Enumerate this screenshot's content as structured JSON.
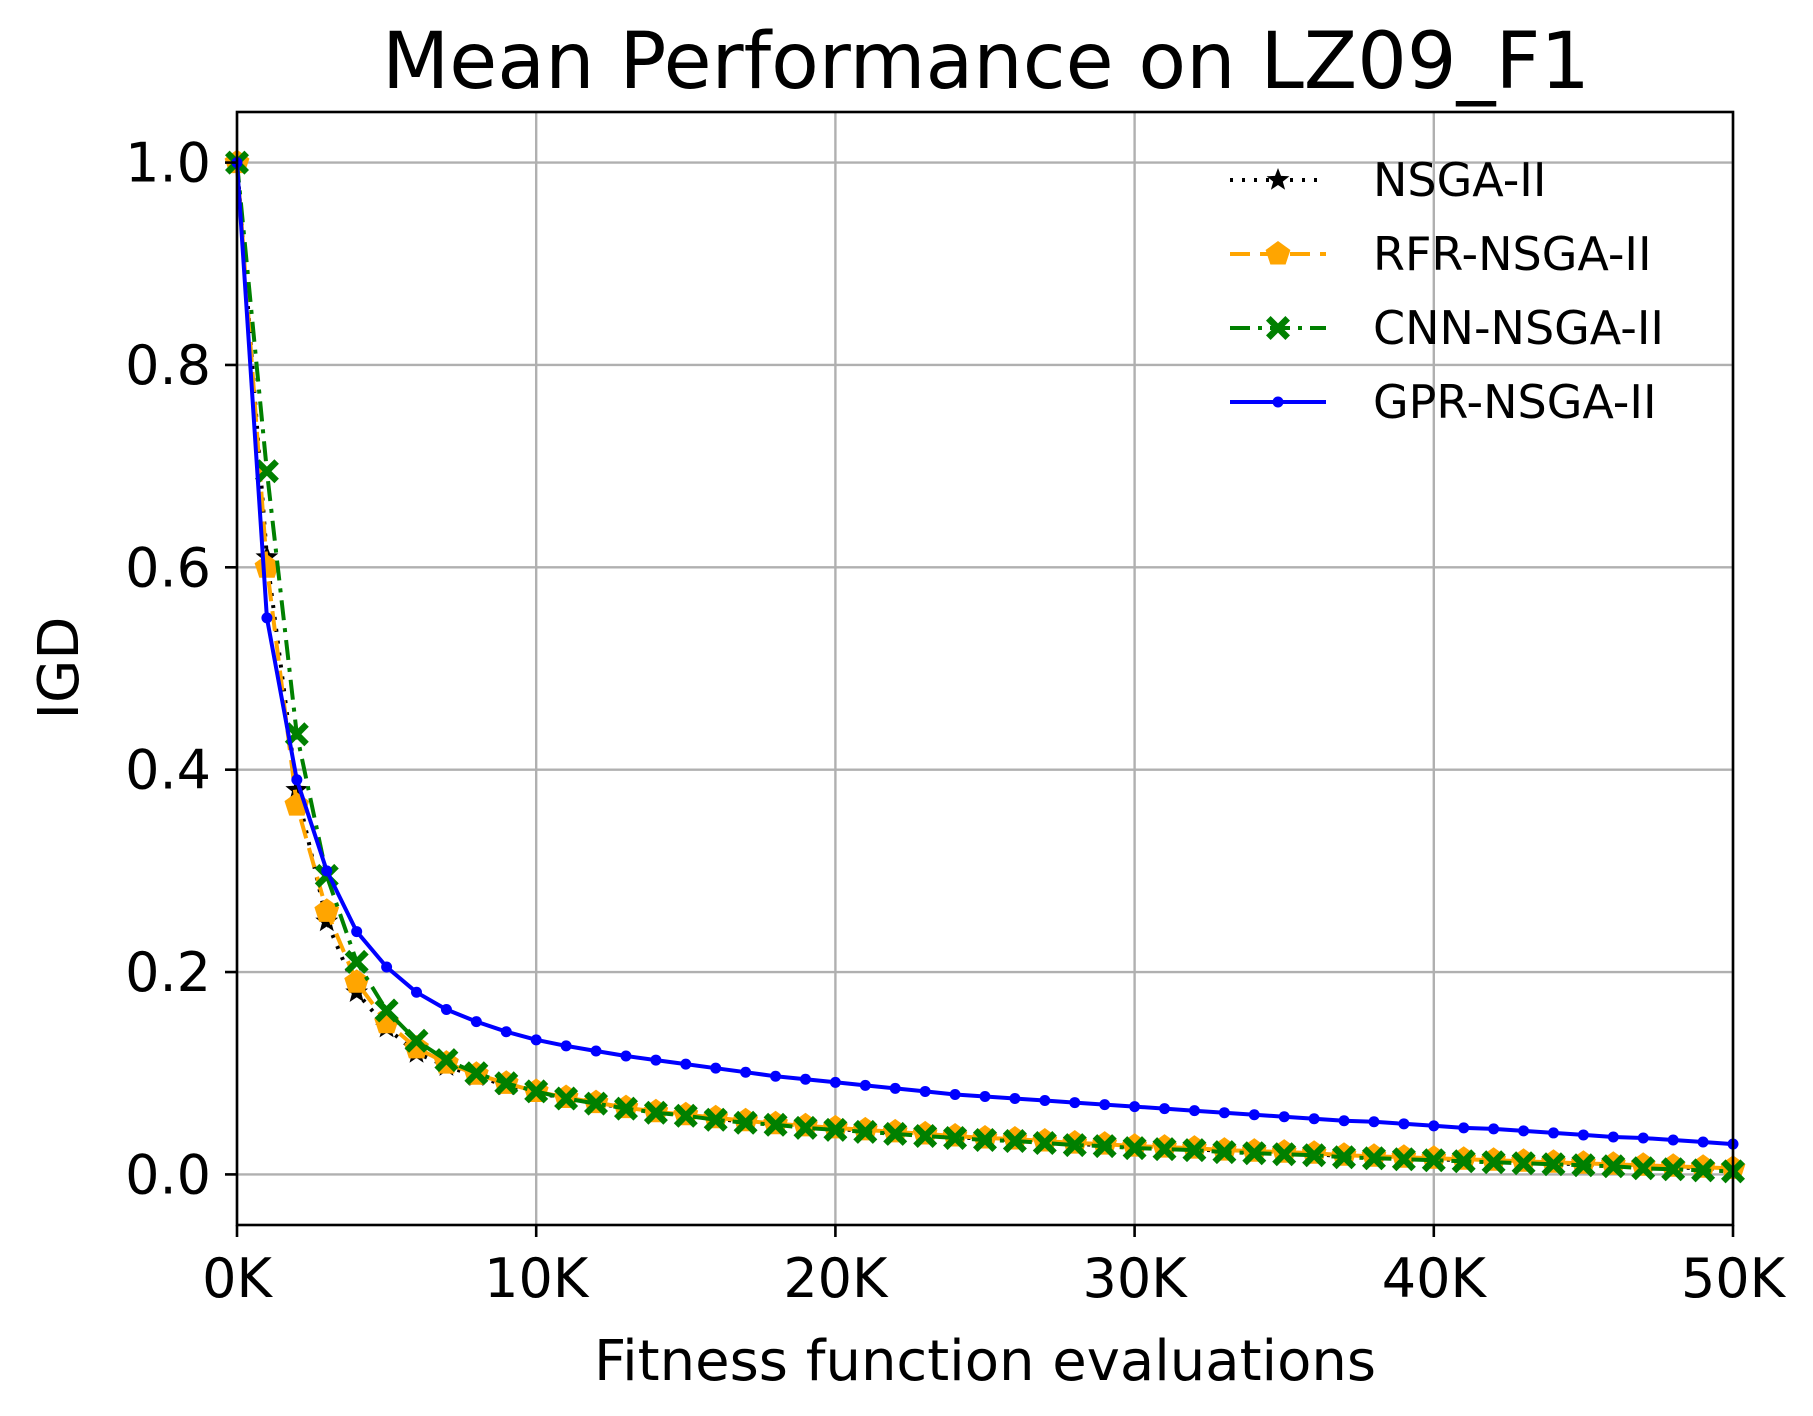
{
  "chart_data": {
    "type": "line",
    "title": "Mean Performance on LZ09_F1",
    "xlabel": "Fitness function evaluations",
    "ylabel": "IGD",
    "xlim": [
      0,
      50000
    ],
    "ylim": [
      -0.05,
      1.05
    ],
    "xticks": [
      0,
      10000,
      20000,
      30000,
      40000,
      50000
    ],
    "xtick_labels": [
      "0K",
      "10K",
      "20K",
      "30K",
      "40K",
      "50K"
    ],
    "yticks": [
      0.0,
      0.2,
      0.4,
      0.6,
      0.8,
      1.0
    ],
    "ytick_labels": [
      "0.0",
      "0.2",
      "0.4",
      "0.6",
      "0.8",
      "1.0"
    ],
    "grid": true,
    "legend_position": "top-right",
    "x": [
      0,
      1000,
      2000,
      3000,
      4000,
      5000,
      6000,
      7000,
      8000,
      9000,
      10000,
      11000,
      12000,
      13000,
      14000,
      15000,
      16000,
      17000,
      18000,
      19000,
      20000,
      21000,
      22000,
      23000,
      24000,
      25000,
      26000,
      27000,
      28000,
      29000,
      30000,
      31000,
      32000,
      33000,
      34000,
      35000,
      36000,
      37000,
      38000,
      39000,
      40000,
      41000,
      42000,
      43000,
      44000,
      45000,
      46000,
      47000,
      48000,
      49000,
      50000
    ],
    "series": [
      {
        "name": "NSGA-II",
        "color": "#000000",
        "linestyle": "dotted",
        "marker": "star",
        "values": [
          1.0,
          0.61,
          0.38,
          0.25,
          0.18,
          0.145,
          0.12,
          0.107,
          0.097,
          0.088,
          0.081,
          0.075,
          0.07,
          0.066,
          0.062,
          0.058,
          0.055,
          0.052,
          0.05,
          0.047,
          0.045,
          0.043,
          0.041,
          0.039,
          0.037,
          0.035,
          0.034,
          0.032,
          0.03,
          0.029,
          0.027,
          0.026,
          0.025,
          0.023,
          0.022,
          0.021,
          0.02,
          0.018,
          0.017,
          0.016,
          0.015,
          0.014,
          0.013,
          0.012,
          0.011,
          0.01,
          0.009,
          0.008,
          0.007,
          0.006,
          0.005
        ]
      },
      {
        "name": "RFR-NSGA-II",
        "color": "#FFA500",
        "linestyle": "dashed",
        "marker": "pentagon",
        "values": [
          1.0,
          0.6,
          0.365,
          0.26,
          0.19,
          0.15,
          0.125,
          0.11,
          0.099,
          0.09,
          0.082,
          0.076,
          0.071,
          0.066,
          0.062,
          0.059,
          0.056,
          0.053,
          0.05,
          0.048,
          0.046,
          0.044,
          0.042,
          0.04,
          0.038,
          0.036,
          0.035,
          0.033,
          0.031,
          0.03,
          0.028,
          0.027,
          0.026,
          0.024,
          0.023,
          0.022,
          0.021,
          0.019,
          0.018,
          0.017,
          0.016,
          0.015,
          0.014,
          0.013,
          0.012,
          0.011,
          0.01,
          0.009,
          0.008,
          0.007,
          0.006
        ]
      },
      {
        "name": "CNN-NSGA-II",
        "color": "#008000",
        "linestyle": "dashdot",
        "marker": "x",
        "values": [
          1.0,
          0.695,
          0.435,
          0.295,
          0.21,
          0.162,
          0.132,
          0.113,
          0.1,
          0.09,
          0.082,
          0.075,
          0.07,
          0.065,
          0.061,
          0.058,
          0.054,
          0.051,
          0.049,
          0.046,
          0.044,
          0.042,
          0.04,
          0.038,
          0.036,
          0.034,
          0.033,
          0.031,
          0.029,
          0.028,
          0.026,
          0.025,
          0.024,
          0.022,
          0.021,
          0.02,
          0.019,
          0.017,
          0.016,
          0.015,
          0.014,
          0.013,
          0.012,
          0.011,
          0.01,
          0.009,
          0.008,
          0.006,
          0.005,
          0.004,
          0.003
        ]
      },
      {
        "name": "GPR-NSGA-II",
        "color": "#0000FF",
        "linestyle": "solid",
        "marker": "dot",
        "values": [
          1.0,
          0.55,
          0.39,
          0.3,
          0.24,
          0.205,
          0.18,
          0.163,
          0.151,
          0.141,
          0.133,
          0.127,
          0.122,
          0.117,
          0.113,
          0.109,
          0.105,
          0.101,
          0.097,
          0.094,
          0.091,
          0.088,
          0.085,
          0.082,
          0.079,
          0.077,
          0.075,
          0.073,
          0.071,
          0.069,
          0.067,
          0.065,
          0.063,
          0.061,
          0.059,
          0.057,
          0.055,
          0.053,
          0.052,
          0.05,
          0.048,
          0.046,
          0.045,
          0.043,
          0.041,
          0.039,
          0.037,
          0.036,
          0.034,
          0.032,
          0.03
        ]
      }
    ]
  }
}
